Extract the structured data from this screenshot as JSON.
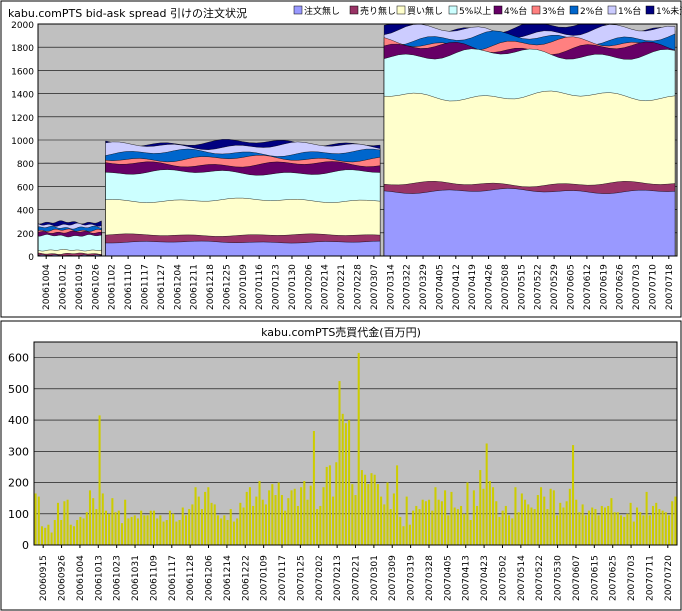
{
  "chart_data": [
    {
      "type": "area",
      "title": "kabu.comPTS bid-ask spread 引けの注文状況",
      "stacked": true,
      "ylim": [
        0,
        2000
      ],
      "yticks": [
        0,
        200,
        400,
        600,
        800,
        1000,
        1200,
        1400,
        1600,
        1800,
        2000
      ],
      "xticks": [
        "20061004",
        "20061012",
        "20061019",
        "20061026",
        "20061102",
        "20061110",
        "20061117",
        "20061127",
        "20061204",
        "20061211",
        "20061218",
        "20061225",
        "20070109",
        "20070116",
        "20070123",
        "20070130",
        "20070206",
        "20070214",
        "20070221",
        "20070228",
        "20070307",
        "20070314",
        "20070322",
        "20070329",
        "20070405",
        "20070412",
        "20070419",
        "20070426",
        "20070508",
        "20070515",
        "20070522",
        "20070529",
        "20070605",
        "20070612",
        "20070619",
        "20070626",
        "20070703",
        "20070710",
        "20070718"
      ],
      "legend_position": "top",
      "grid": true,
      "series": [
        {
          "name": "注文無し",
          "color": "#9999ff"
        },
        {
          "name": "売り無し",
          "color": "#993366"
        },
        {
          "name": "買い無し",
          "color": "#ffffcc"
        },
        {
          "name": "5%以上",
          "color": "#ccffff"
        },
        {
          "name": "4%台",
          "color": "#660066"
        },
        {
          "name": "3%台",
          "color": "#ff8080"
        },
        {
          "name": "2%台",
          "color": "#0066cc"
        },
        {
          "name": "1%台",
          "color": "#ccccff"
        },
        {
          "name": "1%未満",
          "color": "#000080"
        }
      ],
      "segments": [
        {
          "from": "20061004",
          "to": "20061031",
          "levels": [
            5,
            20,
            50,
            175,
            205,
            222,
            245,
            270,
            290
          ]
        },
        {
          "from": "20061101",
          "to": "20070312",
          "levels": [
            120,
            180,
            480,
            720,
            790,
            840,
            890,
            950,
            975
          ]
        },
        {
          "from": "20070313",
          "to": "20070720",
          "levels": [
            560,
            620,
            1380,
            1740,
            1790,
            1830,
            1880,
            1940,
            1970
          ]
        }
      ]
    },
    {
      "type": "bar",
      "title": "kabu.comPTS売買代金(百万円)",
      "color": "#cccc00",
      "ylim": [
        0,
        650
      ],
      "yticks": [
        0,
        100,
        200,
        300,
        400,
        500,
        600
      ],
      "xticks": [
        "20060915",
        "20060926",
        "20061004",
        "20061013",
        "20061023",
        "20061031",
        "20061109",
        "20061117",
        "20061128",
        "20061206",
        "20061214",
        "20061222",
        "20070109",
        "20070117",
        "20070125",
        "20070202",
        "20070213",
        "20070221",
        "20070301",
        "20070309",
        "20070319",
        "20070328",
        "20070405",
        "20070413",
        "20070423",
        "20070502",
        "20070514",
        "20070522",
        "20070530",
        "20070607",
        "20070615",
        "20070625",
        "20070703",
        "20070711",
        "20070720"
      ],
      "grid": true,
      "values": [
        165,
        155,
        60,
        55,
        65,
        40,
        80,
        135,
        80,
        140,
        145,
        65,
        60,
        80,
        90,
        85,
        105,
        175,
        150,
        115,
        415,
        165,
        110,
        100,
        150,
        105,
        110,
        70,
        145,
        85,
        90,
        95,
        85,
        110,
        95,
        95,
        110,
        110,
        85,
        95,
        75,
        80,
        110,
        100,
        75,
        80,
        120,
        95,
        115,
        130,
        185,
        155,
        115,
        170,
        185,
        135,
        130,
        95,
        85,
        95,
        80,
        115,
        75,
        85,
        135,
        120,
        170,
        185,
        125,
        155,
        205,
        145,
        130,
        175,
        195,
        160,
        200,
        160,
        110,
        150,
        175,
        180,
        125,
        185,
        205,
        145,
        190,
        365,
        115,
        125,
        185,
        250,
        255,
        155,
        265,
        525,
        420,
        390,
        400,
        195,
        160,
        615,
        240,
        225,
        195,
        230,
        225,
        195,
        155,
        130,
        200,
        115,
        165,
        255,
        90,
        60,
        155,
        65,
        110,
        125,
        115,
        145,
        140,
        145,
        110,
        185,
        145,
        140,
        175,
        95,
        170,
        120,
        115,
        125,
        100,
        200,
        80,
        175,
        125,
        240,
        180,
        325,
        205,
        185,
        140,
        90,
        110,
        125,
        95,
        85,
        185,
        105,
        165,
        145,
        130,
        120,
        115,
        160,
        185,
        155,
        115,
        180,
        175,
        95,
        135,
        120,
        140,
        180,
        320,
        145,
        105,
        130,
        95,
        110,
        120,
        115,
        95,
        125,
        120,
        125,
        150,
        105,
        105,
        95,
        90,
        100,
        135,
        75,
        120,
        105,
        95,
        170,
        95,
        125,
        135,
        115,
        110,
        105,
        95,
        140,
        155
      ]
    }
  ]
}
